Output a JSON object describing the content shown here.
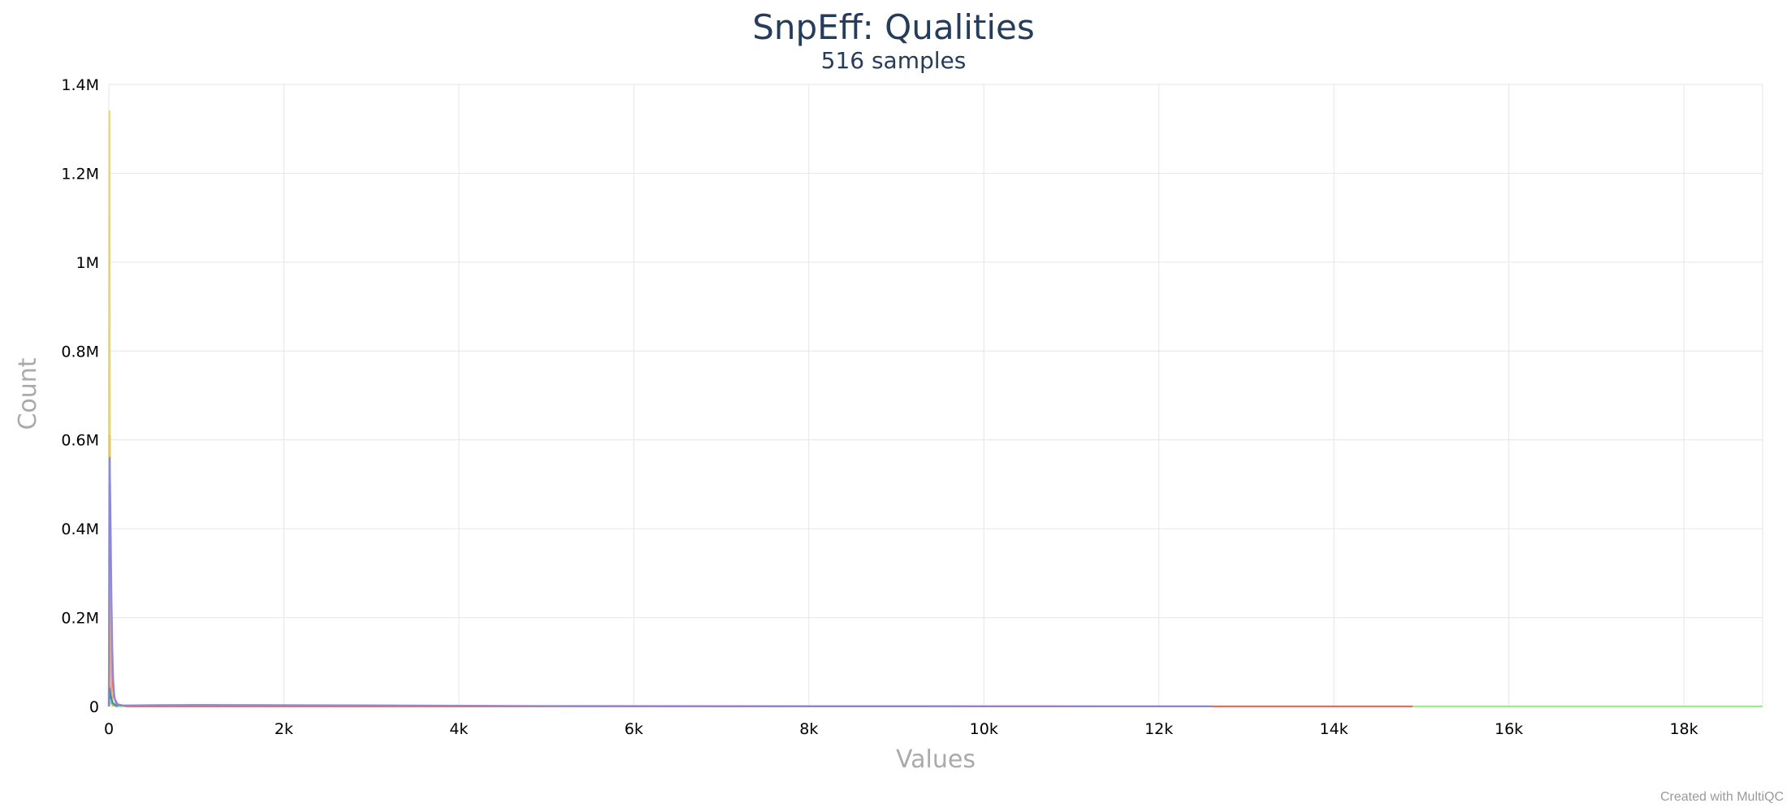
{
  "chart_data": {
    "type": "line",
    "title": "SnpEff: Qualities",
    "subtitle": "516 samples",
    "xlabel": "Values",
    "ylabel": "Count",
    "xlim": [
      0,
      18900
    ],
    "ylim": [
      0,
      1400000
    ],
    "x_ticks": [
      {
        "value": 0,
        "label": "0"
      },
      {
        "value": 2000,
        "label": "2k"
      },
      {
        "value": 4000,
        "label": "4k"
      },
      {
        "value": 6000,
        "label": "6k"
      },
      {
        "value": 8000,
        "label": "8k"
      },
      {
        "value": 10000,
        "label": "10k"
      },
      {
        "value": 12000,
        "label": "12k"
      },
      {
        "value": 14000,
        "label": "14k"
      },
      {
        "value": 16000,
        "label": "16k"
      },
      {
        "value": 18000,
        "label": "18k"
      }
    ],
    "y_ticks": [
      {
        "value": 0,
        "label": "0"
      },
      {
        "value": 200000,
        "label": "0.2M"
      },
      {
        "value": 400000,
        "label": "0.4M"
      },
      {
        "value": 600000,
        "label": "0.6M"
      },
      {
        "value": 800000,
        "label": "0.8M"
      },
      {
        "value": 1000000,
        "label": "1M"
      },
      {
        "value": 1200000,
        "label": "1.2M"
      },
      {
        "value": 1400000,
        "label": "1.4M"
      }
    ],
    "grid": true,
    "legend": "none",
    "series": [
      {
        "color": "#7cb5ec",
        "x": [
          0,
          5,
          10,
          20,
          40,
          60,
          80,
          100
        ],
        "y": [
          0,
          30000,
          45000,
          20000,
          8000,
          3000,
          1000,
          0
        ]
      },
      {
        "color": "#90ed7d",
        "x": [
          0,
          10,
          30,
          60,
          100,
          200,
          14900,
          16000,
          18000,
          18900
        ],
        "y": [
          0,
          10000,
          5000,
          2000,
          1000,
          200,
          100,
          100,
          100,
          100
        ]
      },
      {
        "color": "#f45b5b",
        "x": [
          0,
          5,
          10,
          15,
          25,
          40,
          60,
          100,
          200,
          12700,
          14000,
          14900
        ],
        "y": [
          0,
          450000,
          610000,
          380000,
          150000,
          60000,
          20000,
          5000,
          500,
          100,
          100,
          100
        ]
      },
      {
        "color": "#e4d354",
        "x": [
          0,
          3,
          6,
          10,
          15,
          20,
          30,
          50
        ],
        "y": [
          0,
          900000,
          1340000,
          800000,
          300000,
          100000,
          30000,
          0
        ]
      },
      {
        "color": "#f7a35c",
        "x": [
          0,
          5,
          10,
          15,
          20,
          30,
          50
        ],
        "y": [
          0,
          350000,
          500000,
          250000,
          100000,
          30000,
          0
        ]
      },
      {
        "color": "#2b908f",
        "x": [
          0,
          10,
          20,
          40,
          80,
          100
        ],
        "y": [
          0,
          40000,
          25000,
          8000,
          2000,
          0
        ]
      },
      {
        "color": "#8085e9",
        "x": [
          0,
          10,
          20,
          30,
          40,
          50,
          60,
          70,
          80,
          100,
          500,
          1000,
          2000,
          3000,
          5000,
          8000,
          12600
        ],
        "y": [
          0,
          560000,
          420000,
          250000,
          130000,
          60000,
          30000,
          15000,
          7000,
          2000,
          3000,
          3500,
          3000,
          2500,
          1000,
          500,
          200
        ]
      }
    ]
  },
  "footer": {
    "credit": "Created with MultiQC"
  }
}
